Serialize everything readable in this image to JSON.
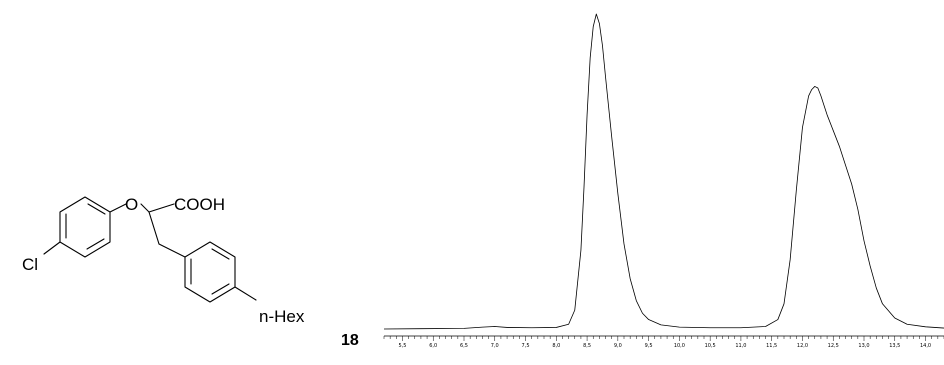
{
  "structure": {
    "labels": {
      "oxygen": "O",
      "acid": "COOH",
      "chlorine": "Cl",
      "hexyl": "n-Hex"
    }
  },
  "compound_number": "18",
  "chart_data": {
    "type": "line",
    "title": "",
    "xlabel": "",
    "ylabel": "",
    "xlim": [
      5.2,
      14.3
    ],
    "ylim": [
      0,
      100
    ],
    "grid": false,
    "x_ticks": [
      5.5,
      6.0,
      6.5,
      7.0,
      7.5,
      8.0,
      8.5,
      9.0,
      9.5,
      10.0,
      10.5,
      11.0,
      11.5,
      12.0,
      12.5,
      13.0,
      13.5,
      14.0
    ],
    "x_tick_labels": [
      "5,5",
      "6,0",
      "6,5",
      "7,0",
      "7,5",
      "8,0",
      "8,5",
      "9,0",
      "9,5",
      "10,0",
      "10,5",
      "11,0",
      "11,5",
      "12,0",
      "12,5",
      "13,0",
      "13,5",
      "14,0"
    ],
    "minor_tick_step": 0.1,
    "series": [
      {
        "x": [
          5.2,
          5.8,
          6.5,
          6.8,
          7.0,
          7.2,
          7.6,
          8.0,
          8.2,
          8.3,
          8.4,
          8.45,
          8.5,
          8.55,
          8.6,
          8.65,
          8.7,
          8.75,
          8.8,
          8.9,
          9.0,
          9.1,
          9.2,
          9.3,
          9.4,
          9.5,
          9.7,
          10.0,
          10.5,
          11.0,
          11.4,
          11.6,
          11.7,
          11.8,
          11.9,
          12.0,
          12.1,
          12.15,
          12.2,
          12.25,
          12.3,
          12.35,
          12.4,
          12.5,
          12.6,
          12.7,
          12.8,
          12.9,
          13.0,
          13.1,
          13.2,
          13.3,
          13.5,
          13.7,
          14.0,
          14.3
        ],
        "y": [
          0.0,
          0.1,
          0.2,
          0.6,
          0.8,
          0.5,
          0.4,
          0.5,
          1.5,
          6,
          25,
          45,
          68,
          86,
          96,
          100,
          97,
          90,
          80,
          61,
          43,
          27,
          16,
          9,
          5,
          3,
          1.3,
          0.6,
          0.4,
          0.4,
          0.8,
          3,
          8,
          22,
          44,
          64,
          74,
          76,
          77,
          76.5,
          74,
          71,
          68,
          63,
          58,
          52,
          46,
          38,
          28,
          20,
          13,
          8,
          3.5,
          1.5,
          0.7,
          0.3
        ]
      }
    ]
  }
}
